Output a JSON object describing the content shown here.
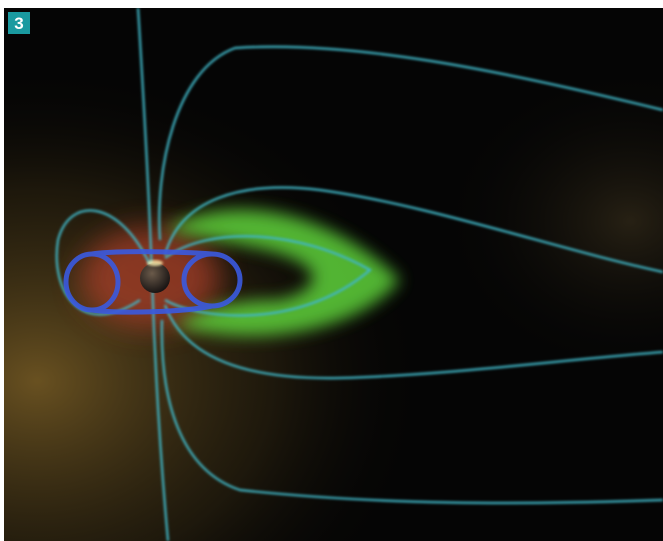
{
  "label": "3"
}
